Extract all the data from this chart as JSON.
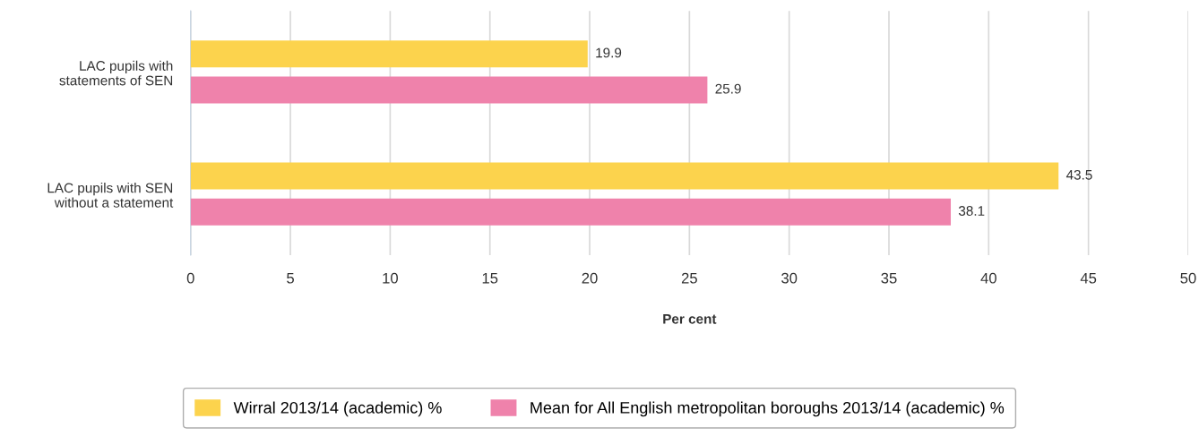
{
  "chart_data": {
    "type": "bar",
    "orientation": "horizontal",
    "categories": [
      "LAC pupils with\nstatements of SEN",
      "LAC pupils with SEN\nwithout a statement"
    ],
    "series": [
      {
        "name": "Wirral 2013/14 (academic) %",
        "color": "#fcd34d",
        "values": [
          19.9,
          43.5
        ]
      },
      {
        "name": "Mean for All English metropolitan boroughs 2013/14 (academic) %",
        "color": "#ef82ab",
        "values": [
          25.9,
          38.1
        ]
      }
    ],
    "xlabel": "Per cent",
    "xlim": [
      0,
      50
    ],
    "xticks": [
      0,
      5,
      10,
      15,
      20,
      25,
      30,
      35,
      40,
      45,
      50
    ],
    "grid": "x",
    "legend": "bottom",
    "data_labels": true
  }
}
